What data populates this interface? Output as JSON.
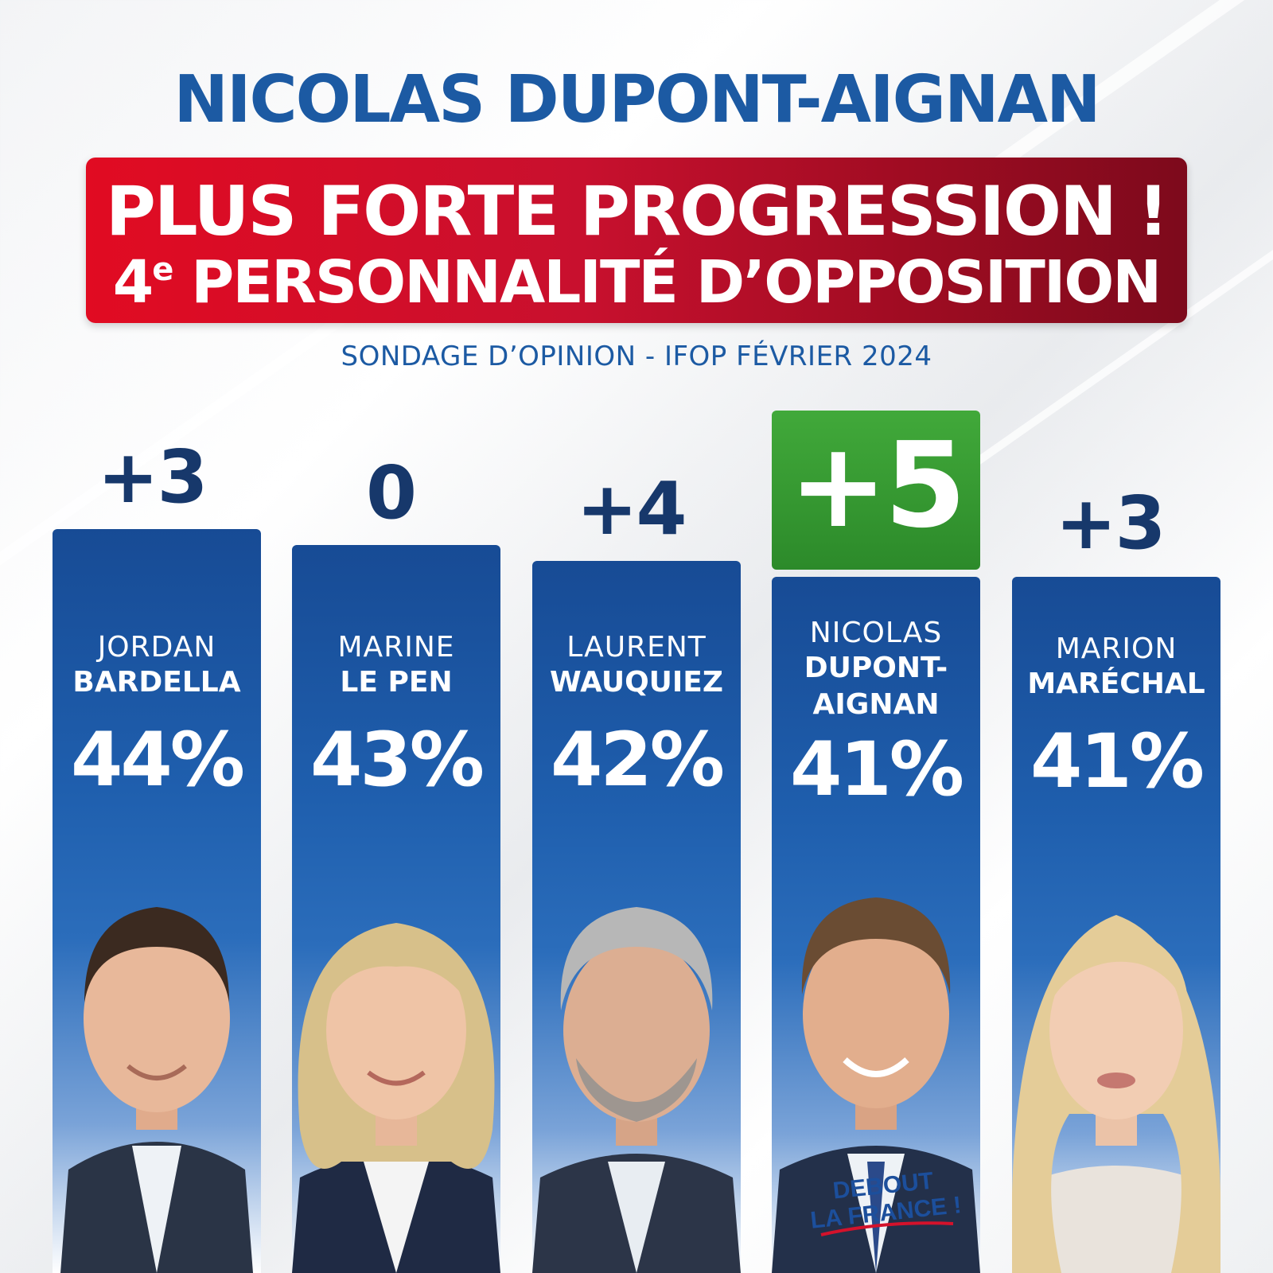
{
  "header": {
    "title": "NICOLAS DUPONT-AIGNAN",
    "banner_line1": "PLUS FORTE PROGRESSION !",
    "banner_line2_num": "4",
    "banner_line2_sup": "e",
    "banner_line2_text": " PERSONNALITÉ D’OPPOSITION",
    "source": "SONDAGE D’OPINION - IFOP FÉVRIER 2024"
  },
  "chart_data": {
    "type": "bar",
    "categories": [
      "JORDAN BARDELLA",
      "MARINE LE PEN",
      "LAURENT WAUQUIEZ",
      "NICOLAS DUPONT-AIGNAN",
      "MARION MARÉCHAL"
    ],
    "values": [
      44,
      43,
      42,
      41,
      41
    ],
    "value_labels": [
      "44%",
      "43%",
      "42%",
      "41%",
      "41%"
    ],
    "changes": [
      "+3",
      "0",
      "+4",
      "+5",
      "+3"
    ],
    "highlight_index": 3,
    "highlight_color": "#3a9b34",
    "bar_color": "#1f5fae"
  },
  "candidates": [
    {
      "first": "JORDAN",
      "last": "BARDELLA",
      "pct": "44%",
      "change": "+3",
      "hair": "#3b2a20",
      "skin": "#e8b89a",
      "suit": "#2a3446"
    },
    {
      "first": "MARINE",
      "last": "LE PEN",
      "pct": "43%",
      "change": "0",
      "hair": "#d7c08a",
      "skin": "#efc4a6",
      "suit": "#1f2a44"
    },
    {
      "first": "LAURENT",
      "last": "WAUQUIEZ",
      "pct": "42%",
      "change": "+4",
      "hair": "#b7b7b7",
      "skin": "#dcae92",
      "suit": "#2c3548"
    },
    {
      "first": "NICOLAS",
      "last_line1": "DUPONT-",
      "last_line2": "AIGNAN",
      "pct": "41%",
      "change": "+5",
      "hair": "#6a4c33",
      "skin": "#e2ae8d",
      "suit": "#23304a"
    },
    {
      "first": "MARION",
      "last": "MARÉCHAL",
      "pct": "41%",
      "change": "+3",
      "hair": "#e4cc98",
      "skin": "#f2cdb3",
      "suit": "#e9e3dc"
    }
  ],
  "logo": {
    "line1": "DEBOUT",
    "line2": "LA FRANCE !"
  }
}
